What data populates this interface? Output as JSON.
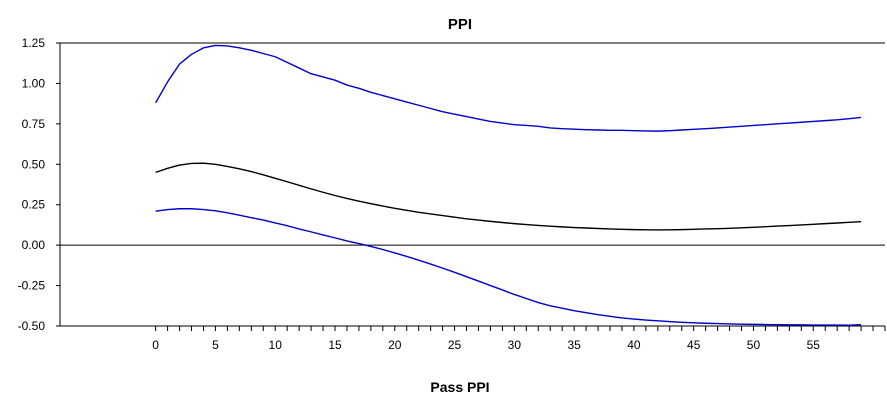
{
  "chart_data": {
    "type": "line",
    "title": "PPI",
    "xlabel": "Pass PPI",
    "ylabel": "",
    "xlim": [
      -8,
      61
    ],
    "ylim": [
      -0.5,
      1.25
    ],
    "x_ticks": [
      0,
      5,
      10,
      15,
      20,
      25,
      30,
      35,
      40,
      45,
      50,
      55
    ],
    "y_ticks": [
      1.25,
      1.0,
      0.75,
      0.5,
      0.25,
      0.0,
      -0.25,
      -0.5
    ],
    "y_tick_labels": [
      "1.25",
      "1.00",
      "0.75",
      "0.50",
      "0.25",
      "0.00",
      "-0.25",
      "-0.50"
    ],
    "grid": false,
    "zero_line": true,
    "x": [
      0,
      1,
      2,
      3,
      4,
      5,
      6,
      7,
      8,
      9,
      10,
      11,
      12,
      13,
      14,
      15,
      16,
      17,
      18,
      19,
      20,
      21,
      22,
      23,
      24,
      25,
      26,
      27,
      28,
      29,
      30,
      31,
      32,
      33,
      34,
      35,
      36,
      37,
      38,
      39,
      40,
      41,
      42,
      43,
      44,
      45,
      46,
      47,
      48,
      49,
      50,
      51,
      52,
      53,
      54,
      55,
      56,
      57,
      58,
      59
    ],
    "series": [
      {
        "color": "#0000cc",
        "values": [
          0.88,
          1.01,
          1.12,
          1.18,
          1.22,
          1.235,
          1.232,
          1.22,
          1.205,
          1.185,
          1.165,
          1.13,
          1.095,
          1.06,
          1.04,
          1.02,
          0.99,
          0.97,
          0.945,
          0.925,
          0.905,
          0.885,
          0.865,
          0.845,
          0.825,
          0.81,
          0.795,
          0.78,
          0.765,
          0.755,
          0.745,
          0.74,
          0.735,
          0.725,
          0.72,
          0.717,
          0.714,
          0.712,
          0.71,
          0.71,
          0.708,
          0.706,
          0.705,
          0.708,
          0.712,
          0.716,
          0.72,
          0.725,
          0.73,
          0.735,
          0.74,
          0.745,
          0.75,
          0.755,
          0.76,
          0.765,
          0.77,
          0.775,
          0.782,
          0.79
        ]
      },
      {
        "color": "#000000",
        "values": [
          0.45,
          0.475,
          0.495,
          0.505,
          0.507,
          0.5,
          0.487,
          0.472,
          0.455,
          0.435,
          0.413,
          0.392,
          0.37,
          0.348,
          0.327,
          0.307,
          0.289,
          0.272,
          0.256,
          0.242,
          0.228,
          0.215,
          0.203,
          0.193,
          0.183,
          0.173,
          0.163,
          0.155,
          0.147,
          0.14,
          0.133,
          0.127,
          0.122,
          0.117,
          0.113,
          0.109,
          0.106,
          0.103,
          0.1,
          0.098,
          0.096,
          0.095,
          0.094,
          0.095,
          0.096,
          0.098,
          0.1,
          0.102,
          0.104,
          0.107,
          0.11,
          0.114,
          0.118,
          0.121,
          0.125,
          0.129,
          0.133,
          0.137,
          0.141,
          0.145
        ]
      },
      {
        "color": "#0000cc",
        "values": [
          0.21,
          0.22,
          0.225,
          0.225,
          0.22,
          0.212,
          0.2,
          0.185,
          0.17,
          0.155,
          0.137,
          0.12,
          0.1,
          0.082,
          0.063,
          0.045,
          0.026,
          0.01,
          -0.008,
          -0.027,
          -0.048,
          -0.07,
          -0.093,
          -0.117,
          -0.142,
          -0.168,
          -0.195,
          -0.222,
          -0.25,
          -0.277,
          -0.305,
          -0.33,
          -0.355,
          -0.375,
          -0.39,
          -0.405,
          -0.418,
          -0.43,
          -0.44,
          -0.45,
          -0.457,
          -0.463,
          -0.468,
          -0.473,
          -0.477,
          -0.48,
          -0.483,
          -0.485,
          -0.487,
          -0.489,
          -0.49,
          -0.491,
          -0.492,
          -0.493,
          -0.493,
          -0.494,
          -0.494,
          -0.494,
          -0.495,
          -0.492
        ]
      }
    ]
  }
}
